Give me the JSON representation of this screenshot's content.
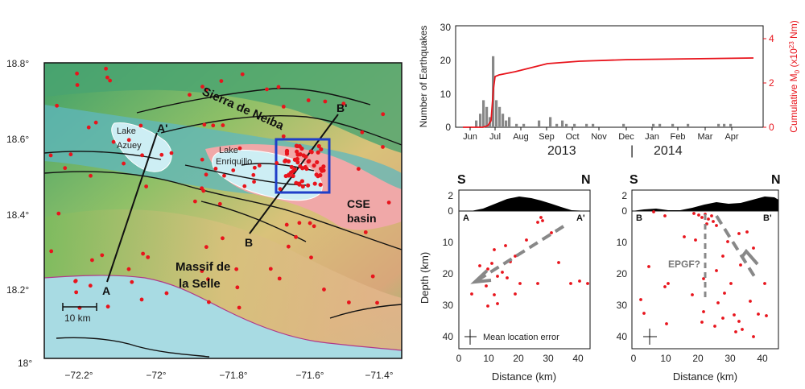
{
  "map": {
    "y_ticks": [
      "18.8°",
      "18.6°",
      "18.4°",
      "18.2°",
      "18°"
    ],
    "x_ticks": [
      "−72.2°",
      "−72°",
      "−71.8°",
      "−71.6°",
      "−71.4°"
    ],
    "labels": {
      "sierra": "Sierra de Neiba",
      "lake_azuey_1": "Lake",
      "lake_azuey_2": "Azuey",
      "lake_enriq_1": "Lake",
      "lake_enriq_2": "Enriquillo",
      "cse_1": "CSE",
      "cse_2": "basin",
      "massif_1": "Massif de",
      "massif_2": "la Selle",
      "A": "A",
      "A_prime": "A'",
      "B": "B",
      "B_prime": "B'",
      "scale": "10 km"
    },
    "colors": {
      "sea": "#a8dbe3",
      "basin": "#f0a8a8",
      "quake": "#e8141c",
      "box": "#1f3fc8"
    }
  },
  "timeseries": {
    "ylabel_left": "Number of Earthquakes",
    "ylabel_right": "Cumulative M",
    "ylabel_right_sub": "0",
    "ylabel_right_unit": " (x10",
    "ylabel_right_exp": "23",
    "ylabel_right_end": " Nm)",
    "y_ticks_left": [
      "0",
      "10",
      "20",
      "30"
    ],
    "y_ticks_right": [
      "0",
      "2",
      "4"
    ],
    "months": [
      "Jun",
      "Jul",
      "Aug",
      "Sep",
      "Oct",
      "Nov",
      "Dec",
      "Jan",
      "Feb",
      "Mar",
      "Apr"
    ],
    "year_2013": "2013",
    "year_sep": "|",
    "year_2014": "2014",
    "colors": {
      "bars": "#888888",
      "cumulative": "#e8141c"
    }
  },
  "sections": {
    "left_S": "S",
    "left_N": "N",
    "right_S": "S",
    "right_N": "N",
    "topo_ticks": [
      "2",
      "0"
    ],
    "depth_ticks": [
      "10",
      "20",
      "30",
      "40"
    ],
    "dist_ticks": [
      "0",
      "10",
      "20",
      "30",
      "40"
    ],
    "ylabel": "Depth (km)",
    "xlabel_left": "Distance (km)",
    "xlabel_right": "Distance (km)",
    "left_start": "A",
    "left_end": "A'",
    "right_start": "B",
    "right_end": "B'",
    "epgf": "EPGF?",
    "mean_error": "Mean location error"
  }
}
